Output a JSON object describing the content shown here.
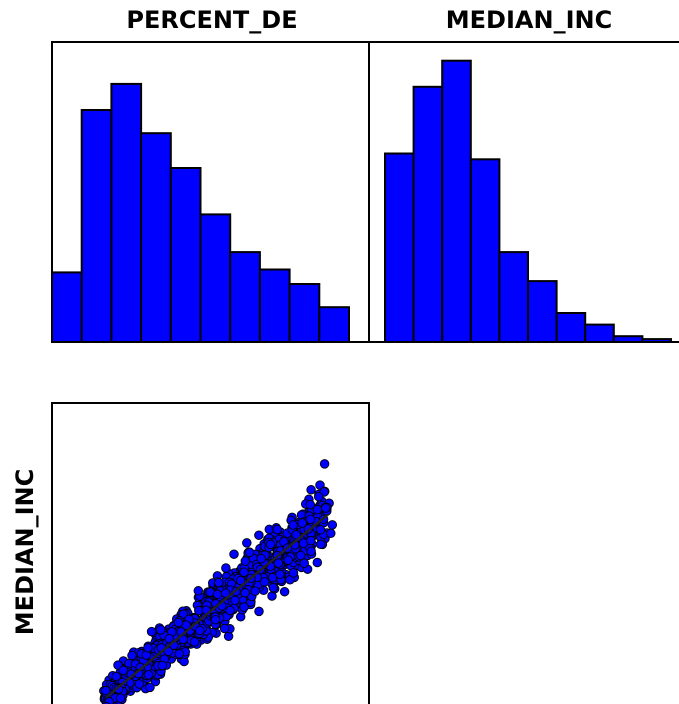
{
  "chart_data": [
    {
      "type": "bar",
      "title": "PERCENT_DE",
      "values": [
        0.24,
        0.8,
        0.89,
        0.72,
        0.6,
        0.44,
        0.31,
        0.25,
        0.2,
        0.12
      ],
      "ylim": [
        0,
        1
      ],
      "color": "#0000ff"
    },
    {
      "type": "bar",
      "title": "MEDIAN_INC",
      "values": [
        0.65,
        0.88,
        0.97,
        0.63,
        0.31,
        0.21,
        0.1,
        0.06,
        0.02,
        0.01
      ],
      "ylim": [
        0,
        1
      ],
      "color": "#0000ff"
    },
    {
      "type": "scatter",
      "ylabel": "MEDIAN_INC",
      "xlim": [
        0,
        1
      ],
      "ylim": [
        0,
        1
      ],
      "color": "#0000ff",
      "fit_line": {
        "x": [
          0.17,
          0.87
        ],
        "y": [
          0.05,
          0.64
        ]
      },
      "points_summary": {
        "count": 1000,
        "x_range": [
          0.17,
          0.87
        ],
        "slope": 0.85
      }
    }
  ]
}
